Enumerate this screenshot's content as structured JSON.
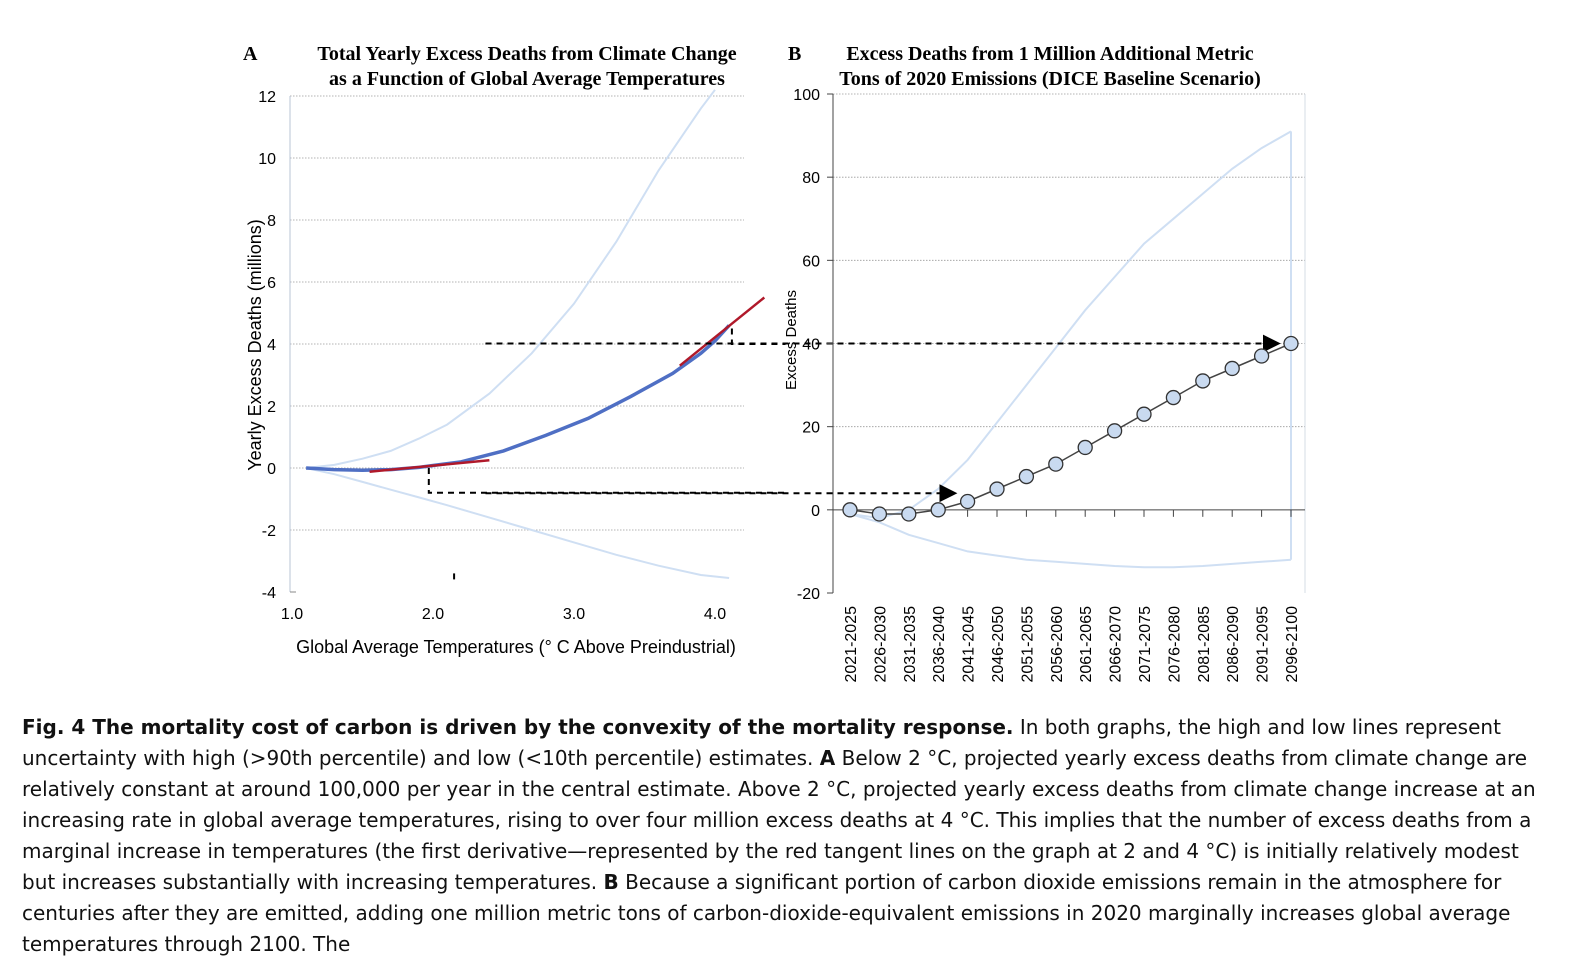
{
  "chart_data": [
    {
      "type": "line",
      "panel_letter": "A",
      "title_line1": "Total Yearly Excess Deaths from Climate Change",
      "title_line2": "as a Function of Global Average Temperatures",
      "xlabel": "Global Average Temperatures (° C Above Preindustrial)",
      "ylabel": "Yearly Excess Deaths (millions)",
      "xlim": [
        1.0,
        4.1
      ],
      "ylim": [
        -4,
        12
      ],
      "xticks": [
        "1.0",
        "2.0",
        "3.0",
        "4.0"
      ],
      "xtick_values": [
        1.0,
        2.0,
        3.0,
        4.0
      ],
      "yticks": [
        "12",
        "10",
        "8",
        "6",
        "4",
        "2",
        "0",
        "-2",
        "-4"
      ],
      "ytick_values": [
        12,
        10,
        8,
        6,
        4,
        2,
        0,
        -2,
        -4
      ],
      "grid": true,
      "colors": {
        "central": "#4f6fc4",
        "band": "#cfdff3",
        "tangent": "#b0192a"
      },
      "series": [
        {
          "x": [
            1.1,
            1.3,
            1.5,
            1.7,
            1.9,
            2.0,
            2.2,
            2.5,
            2.8,
            3.1,
            3.4,
            3.7,
            3.9,
            4.0,
            4.1
          ],
          "y": [
            0.0,
            -0.05,
            -0.07,
            -0.05,
            0.02,
            0.08,
            0.2,
            0.55,
            1.05,
            1.6,
            2.3,
            3.05,
            3.7,
            4.1,
            4.6
          ]
        },
        {
          "x": [
            1.1,
            1.3,
            1.5,
            1.7,
            1.9,
            2.1,
            2.4,
            2.7,
            3.0,
            3.3,
            3.6,
            3.9,
            4.0
          ],
          "y": [
            0.0,
            0.1,
            0.3,
            0.55,
            0.95,
            1.4,
            2.4,
            3.7,
            5.3,
            7.3,
            9.6,
            11.6,
            12.2
          ]
        },
        {
          "x": [
            1.1,
            1.3,
            1.5,
            1.7,
            1.9,
            2.1,
            2.4,
            2.7,
            3.0,
            3.3,
            3.6,
            3.9,
            4.1
          ],
          "y": [
            0.0,
            -0.2,
            -0.45,
            -0.7,
            -0.95,
            -1.2,
            -1.6,
            -2.0,
            -2.4,
            -2.8,
            -3.15,
            -3.45,
            -3.55
          ]
        }
      ],
      "tangents": [
        {
          "x": [
            1.55,
            2.4
          ],
          "y": [
            -0.12,
            0.25
          ]
        },
        {
          "x": [
            3.75,
            4.35
          ],
          "y": [
            3.3,
            5.5
          ]
        }
      ],
      "guides": [
        {
          "x": [
            1.97,
            1.97,
            4.5
          ],
          "y": [
            0.0,
            -0.8,
            -0.8
          ]
        },
        {
          "x": [
            4.12,
            4.12,
            4.5
          ],
          "y": [
            4.5,
            4.0,
            4.0
          ]
        },
        {
          "x": [
            2.15,
            2.15
          ],
          "y": [
            -3.4,
            -3.7
          ]
        }
      ]
    },
    {
      "type": "line",
      "panel_letter": "B",
      "title_line1": "Excess Deaths from 1 Million Additional Metric",
      "title_line2": "Tons of 2020 Emissions (DICE Baseline Scenario)",
      "xlabel": "",
      "ylabel": "Excess Deaths",
      "ylim": [
        -20,
        100
      ],
      "yticks": [
        "100",
        "80",
        "60",
        "40",
        "20",
        "0",
        "-20"
      ],
      "ytick_values": [
        100,
        80,
        60,
        40,
        20,
        0,
        -20
      ],
      "grid": true,
      "colors": {
        "central": "#444444",
        "marker_fill": "#c9daf0",
        "band": "#cfdff3"
      },
      "categories": [
        "2021-2025",
        "2026-2030",
        "2031-2035",
        "2036-2040",
        "2041-2045",
        "2046-2050",
        "2051-2055",
        "2056-2060",
        "2061-2065",
        "2066-2070",
        "2071-2075",
        "2076-2080",
        "2081-2085",
        "2086-2090",
        "2091-2095",
        "2096-2100"
      ],
      "series": [
        {
          "values": [
            0,
            -1,
            -1,
            0,
            2,
            5,
            8,
            11,
            15,
            19,
            23,
            27,
            31,
            34,
            37,
            40
          ]
        },
        {
          "values": [
            -1,
            -2,
            0,
            5,
            12,
            21,
            30,
            39,
            48,
            56,
            64,
            70,
            76,
            82,
            87,
            91
          ]
        },
        {
          "values": [
            -1,
            -3,
            -6,
            -8,
            -10,
            -11,
            -12,
            -12.5,
            -13,
            -13.5,
            -13.8,
            -13.8,
            -13.5,
            -13,
            -12.5,
            -12
          ]
        }
      ],
      "arrows": [
        {
          "from_x": 4.5,
          "to_category": 4,
          "y": 4
        },
        {
          "from_x": 4.5,
          "to_category": 15,
          "y": 40
        }
      ]
    }
  ],
  "caption": {
    "bold": "Fig. 4 The mortality cost of carbon is driven by the convexity of the mortality response.",
    "text1": " In both graphs, the high and low lines represent uncertainty with high (>90th percentile) and low (<10th percentile) estimates. ",
    "bold_a": "A",
    "text2": " Below 2 °C, projected yearly excess deaths from climate change are relatively constant at around 100,000 per year in the central estimate. Above 2 °C, projected yearly excess deaths from climate change increase at an increasing rate in global average temperatures, rising to over four million excess deaths at 4 °C. This implies that the number of excess deaths from a marginal increase in temperatures (the first derivative—represented by the red tangent lines on the graph at 2 and 4 °C) is initially relatively modest but increases substantially with increasing temperatures. ",
    "bold_b": "B",
    "text3": " Because a significant portion of carbon dioxide emissions remain in the atmosphere for centuries after they are emitted, adding one million metric tons of carbon-dioxide-equivalent emissions in 2020 marginally increases global average temperatures through 2100. The"
  }
}
